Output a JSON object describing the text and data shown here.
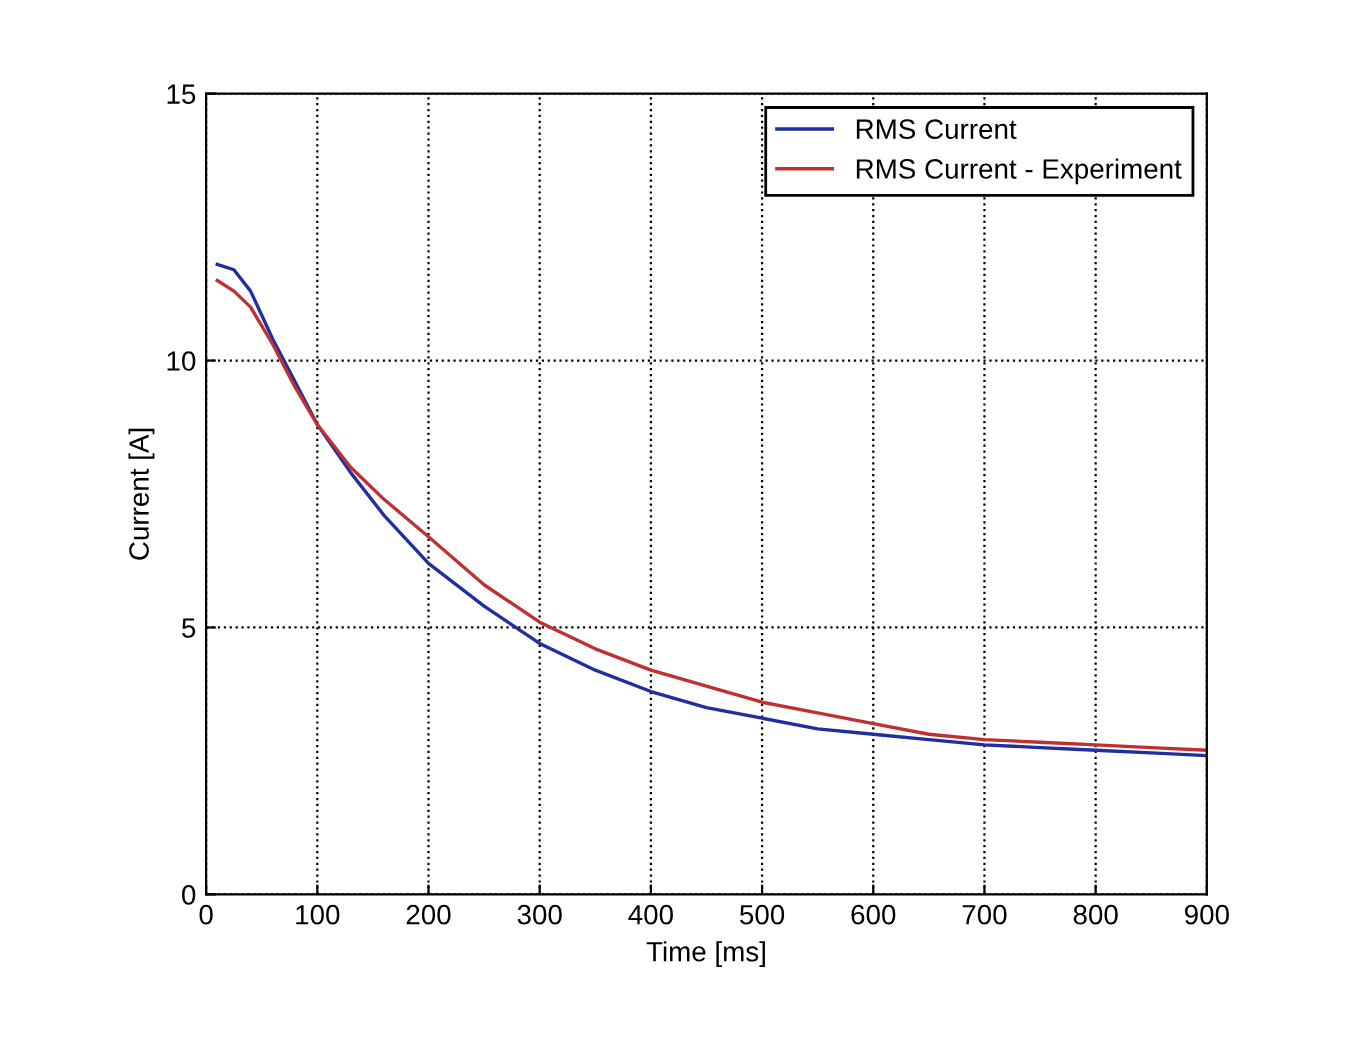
{
  "chart_data": {
    "type": "line",
    "xlabel": "Time [ms]",
    "ylabel": "Current [A]",
    "xlim": [
      0,
      900
    ],
    "ylim": [
      0,
      15
    ],
    "xticks": [
      0,
      100,
      200,
      300,
      400,
      500,
      600,
      700,
      800,
      900
    ],
    "yticks": [
      0,
      5,
      10,
      15
    ],
    "grid": true,
    "legend": "top right",
    "marker": "none",
    "line_style": "solid",
    "series": [
      {
        "name": "RMS Current",
        "color": "#1f2fa0",
        "x": [
          10,
          25,
          40,
          60,
          80,
          100,
          130,
          160,
          200,
          250,
          300,
          350,
          400,
          450,
          500,
          550,
          600,
          650,
          700,
          750,
          800,
          850,
          900
        ],
        "values": [
          11.8,
          11.7,
          11.3,
          10.4,
          9.6,
          8.8,
          7.9,
          7.1,
          6.2,
          5.4,
          4.7,
          4.2,
          3.8,
          3.5,
          3.3,
          3.1,
          3.0,
          2.9,
          2.8,
          2.75,
          2.7,
          2.65,
          2.6
        ]
      },
      {
        "name": "RMS Current - Experiment",
        "color": "#c03030",
        "x": [
          10,
          25,
          40,
          60,
          80,
          100,
          130,
          160,
          200,
          250,
          300,
          350,
          400,
          450,
          500,
          550,
          600,
          650,
          700,
          750,
          800,
          850,
          900
        ],
        "values": [
          11.5,
          11.3,
          11.0,
          10.3,
          9.5,
          8.8,
          8.0,
          7.4,
          6.7,
          5.8,
          5.1,
          4.6,
          4.2,
          3.9,
          3.6,
          3.4,
          3.2,
          3.0,
          2.9,
          2.85,
          2.8,
          2.75,
          2.7
        ]
      }
    ]
  }
}
